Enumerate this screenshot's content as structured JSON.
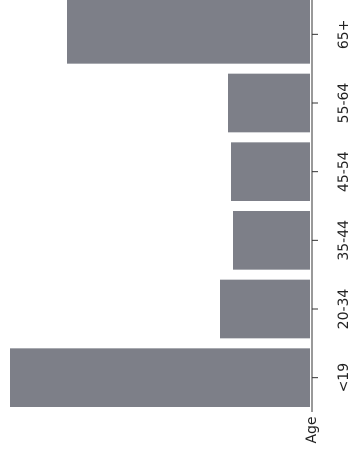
{
  "chart_data": {
    "type": "bar",
    "orientation": "horizontal",
    "rotated": true,
    "categories": [
      "<19",
      "20-34",
      "35-44",
      "45-54",
      "55-64",
      "65+"
    ],
    "values": [
      300,
      90,
      77,
      79,
      82,
      243
    ],
    "xlabel": "Age",
    "ylabel": "",
    "ylim": [
      0,
      300
    ],
    "grid": false,
    "legend": "none",
    "bar_color": "#7d7f88",
    "axis_color": "#333333"
  }
}
